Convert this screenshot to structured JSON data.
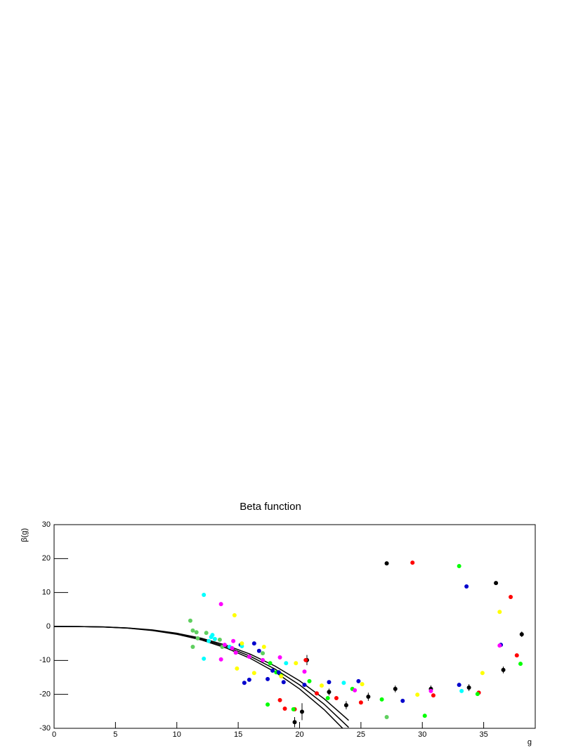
{
  "chart_data": {
    "type": "scatter",
    "title": "Beta function",
    "x_label": "g",
    "y_label": "β(g)",
    "xlim": [
      0,
      39.2
    ],
    "ylim": [
      -30,
      30
    ],
    "xticks": [
      0,
      5,
      10,
      15,
      20,
      25,
      30,
      35
    ],
    "yticks": [
      -30,
      -20,
      -10,
      0,
      10,
      20,
      30
    ],
    "curves": [
      {
        "color": "#000000",
        "x": [
          0,
          2,
          4,
          6,
          8,
          10,
          12,
          14,
          16,
          18,
          20,
          22,
          24
        ],
        "values": [
          0,
          -0.02,
          -0.13,
          -0.43,
          -1.02,
          -2,
          -3.46,
          -5.49,
          -8.19,
          -11.66,
          -16,
          -21.3,
          -27.65
        ]
      },
      {
        "color": "#000000",
        "x": [
          0,
          2,
          4,
          6,
          8,
          10,
          12,
          14,
          16,
          18,
          20,
          22,
          24
        ],
        "values": [
          0,
          -0.02,
          -0.14,
          -0.46,
          -1.1,
          -2.15,
          -3.72,
          -5.9,
          -8.81,
          -12.54,
          -17.2,
          -22.89,
          -29.72
        ]
      },
      {
        "color": "#000000",
        "x": [
          0,
          2,
          4,
          6,
          8,
          10,
          12,
          14,
          16,
          18,
          20,
          22,
          24
        ],
        "values": [
          0,
          -0.02,
          -0.15,
          -0.5,
          -1.18,
          -2.3,
          -3.97,
          -6.31,
          -9.42,
          -13.41,
          -18.4,
          -24.49,
          -31.8
        ]
      }
    ],
    "series": [
      {
        "color": "#000000",
        "x": [
          27.1,
          36.0,
          38.1,
          36.6,
          33.8,
          30.7,
          27.8,
          25.6,
          23.8,
          22.4,
          19.6,
          20.2,
          20.6
        ],
        "values": [
          18.6,
          12.8,
          -2.3,
          -12.8,
          -18.0,
          -18.4,
          -18.4,
          -20.7,
          -23.2,
          -19.3,
          -28.2,
          -25.1,
          -9.9
        ],
        "errors": [
          0.5,
          0.5,
          0.8,
          1,
          1,
          1,
          1,
          1.2,
          1.2,
          1,
          1.5,
          2.5,
          1.5
        ]
      },
      {
        "color": "#ff0000",
        "x": [
          29.2,
          37.2,
          37.7,
          34.6,
          30.9,
          25.0,
          23.0,
          21.4,
          20.5,
          18.4,
          18.8,
          19.6
        ],
        "values": [
          18.8,
          8.7,
          -8.5,
          -19.5,
          -20.3,
          -22.4,
          -21.1,
          -19.7,
          -9.9,
          -21.7,
          -24.2,
          -24.4
        ]
      },
      {
        "color": "#00ff00",
        "x": [
          33.0,
          38.0,
          34.5,
          30.2,
          26.7,
          24.3,
          22.3,
          20.8,
          19.5,
          17.4,
          17.6,
          18.1,
          18.5
        ],
        "values": [
          17.8,
          -11.0,
          -19.9,
          -26.3,
          -21.5,
          -18.4,
          -21.1,
          -16.1,
          -24.4,
          -23.0,
          -10.8,
          -13.5,
          -14.5
        ]
      },
      {
        "color": "#5fcf5f",
        "x": [
          11.1,
          11.3,
          11.6,
          12.4,
          11.7,
          11.3,
          13.5,
          13.7,
          17.0,
          27.1
        ],
        "values": [
          1.7,
          -1.2,
          -1.7,
          -1.9,
          -3.5,
          -6.0,
          -3.9,
          -6.0,
          -7.9,
          -26.7
        ]
      },
      {
        "color": "#0000cc",
        "x": [
          33.6,
          36.4,
          33.0,
          28.4,
          24.8,
          22.4,
          20.4,
          18.7,
          17.4,
          15.9,
          15.5,
          15.2,
          16.3,
          16.7,
          17.8,
          18.3
        ],
        "values": [
          11.8,
          -5.4,
          -17.2,
          -21.9,
          -16.1,
          -16.4,
          -17.2,
          -16.4,
          -15.5,
          -15.7,
          -16.6,
          -5.4,
          -5.0,
          -7.2,
          -13.0,
          -13.5
        ]
      },
      {
        "color": "#00ffff",
        "x": [
          12.2,
          12.2,
          12.6,
          12.8,
          12.9,
          13.1,
          14.3,
          15.3,
          18.9,
          23.6,
          33.2
        ],
        "values": [
          9.3,
          -9.5,
          -4.3,
          -3.1,
          -2.5,
          -3.7,
          -6.0,
          -5.8,
          -10.8,
          -16.6,
          -19.0
        ]
      },
      {
        "color": "#ff00ff",
        "x": [
          13.6,
          13.6,
          13.9,
          14.6,
          14.5,
          14.8,
          15.9,
          17.0,
          18.4,
          20.4,
          24.5,
          30.7,
          36.3
        ],
        "values": [
          6.6,
          -9.7,
          -5.4,
          -4.3,
          -6.4,
          -7.7,
          -8.9,
          -9.9,
          -9.1,
          -13.3,
          -18.8,
          -19.0,
          -5.6
        ]
      },
      {
        "color": "#ffff00",
        "x": [
          14.7,
          14.9,
          15.3,
          17.1,
          16.3,
          19.7,
          21.8,
          25.1,
          29.6,
          36.3,
          34.9,
          18.5
        ],
        "values": [
          3.3,
          -12.4,
          -5.0,
          -6.0,
          -13.7,
          -10.8,
          -17.4,
          -17.0,
          -20.1,
          4.3,
          -13.7,
          -14.7
        ]
      }
    ]
  }
}
